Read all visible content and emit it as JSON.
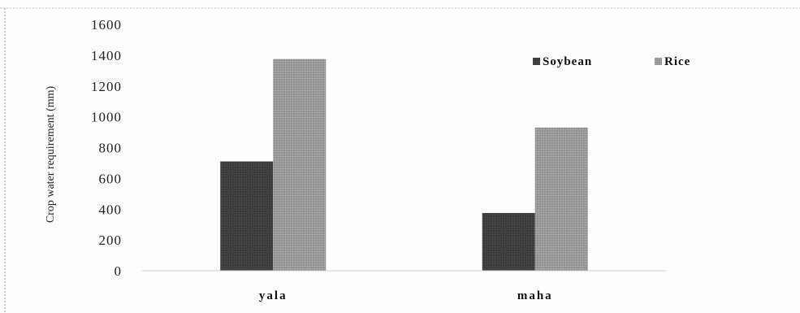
{
  "chart_data": {
    "type": "bar",
    "title": "",
    "xlabel": "",
    "ylabel": "Crop water requirement (mm)",
    "categories": [
      "yala",
      "maha"
    ],
    "series": [
      {
        "name": "Soybean",
        "values": [
          710,
          375
        ],
        "color": "#3d3d3d"
      },
      {
        "name": "Rice",
        "values": [
          1375,
          930
        ],
        "color": "#9a9a9a"
      }
    ],
    "ylim": [
      0,
      1600
    ],
    "yticks": [
      "0",
      "200",
      "400",
      "600",
      "800",
      "1000",
      "1200",
      "1400",
      "1600"
    ],
    "grid": false,
    "legend_position": "top-right"
  }
}
